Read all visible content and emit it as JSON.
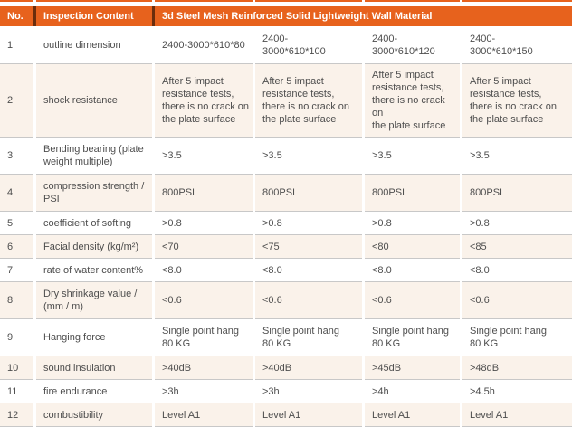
{
  "colors": {
    "accent": "#e7621d",
    "header_divider": "#6b2d0c",
    "row_alt": "#faf2ea",
    "line": "#c8c8c8",
    "text": "#4e4e4e"
  },
  "table": {
    "header": {
      "no": "No.",
      "inspection": "Inspection Content",
      "material": "3d Steel Mesh Reinforced Solid Lightweight Wall Material"
    },
    "rows": [
      {
        "no": "1",
        "label": "outline dimension",
        "values": [
          "2400-3000*610*80",
          "2400-\n3000*610*100",
          "2400-\n3000*610*120",
          "2400-\n3000*610*150"
        ]
      },
      {
        "no": "2",
        "label": "shock resistance",
        "values": [
          "After 5 impact\nresistance tests,\nthere is no crack on\nthe plate surface",
          "After 5 impact\nresistance tests,\nthere is no crack on\nthe plate surface",
          "After 5 impact\nresistance tests,\nthere is no crack on\nthe plate surface",
          "After 5 impact\nresistance tests,\nthere is no crack on\nthe plate surface"
        ]
      },
      {
        "no": "3",
        "label": "Bending bearing (plate\nweight multiple)",
        "values": [
          ">3.5",
          ">3.5",
          ">3.5",
          ">3.5"
        ]
      },
      {
        "no": "4",
        "label": "compression strength /\nPSI",
        "values": [
          "800PSI",
          "800PSI",
          "800PSI",
          "800PSI"
        ]
      },
      {
        "no": "5",
        "label": "coefficient of softing",
        "values": [
          ">0.8",
          ">0.8",
          ">0.8",
          ">0.8"
        ]
      },
      {
        "no": "6",
        "label": "Facial density (kg/m²)",
        "values": [
          "<70",
          "<75",
          "<80",
          "<85"
        ]
      },
      {
        "no": "7",
        "label": "rate of water content%",
        "values": [
          "<8.0",
          "<8.0",
          "<8.0",
          "<8.0"
        ]
      },
      {
        "no": "8",
        "label": "Dry shrinkage value /\n(mm / m)",
        "values": [
          "<0.6",
          "<0.6",
          "<0.6",
          "<0.6"
        ]
      },
      {
        "no": "9",
        "label": "Hanging force",
        "values": [
          "Single point hang\n80 KG",
          "Single point hang\n80 KG",
          "Single point hang\n80 KG",
          "Single point hang\n80 KG"
        ]
      },
      {
        "no": "10",
        "label": "sound insulation",
        "values": [
          ">40dB",
          ">40dB",
          ">45dB",
          ">48dB"
        ]
      },
      {
        "no": "11",
        "label": "fire endurance",
        "values": [
          ">3h",
          ">3h",
          ">4h",
          ">4.5h"
        ]
      },
      {
        "no": "12",
        "label": "combustibility",
        "values": [
          "Level A1",
          "Level A1",
          "Level A1",
          "Level A1"
        ]
      }
    ]
  }
}
